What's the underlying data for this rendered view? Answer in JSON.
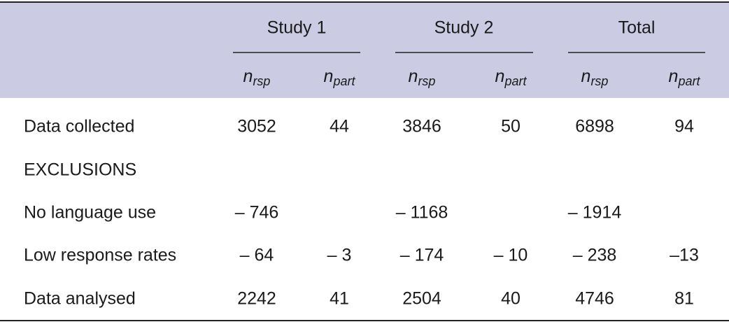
{
  "table": {
    "groups": [
      "Study 1",
      "Study 2",
      "Total"
    ],
    "subheaders": [
      {
        "base": "n",
        "sub": "rsp"
      },
      {
        "base": "n",
        "sub": "part"
      },
      {
        "base": "n",
        "sub": "rsp"
      },
      {
        "base": "n",
        "sub": "part"
      },
      {
        "base": "n",
        "sub": "rsp"
      },
      {
        "base": "n",
        "sub": "part"
      }
    ],
    "rows": [
      {
        "label": "Data collected",
        "cells": [
          3052,
          44,
          3846,
          50,
          6898,
          94
        ]
      },
      {
        "label": "EXCLUSIONS",
        "cells": []
      },
      {
        "label": "No language use",
        "cells": [
          "– 746",
          null,
          "– 1168",
          null,
          "– 1914",
          null
        ]
      },
      {
        "label": "Low response rates",
        "cells": [
          "– 64",
          "– 3",
          "– 174",
          "– 10",
          "– 238",
          "–13"
        ]
      },
      {
        "label": "Data analysed",
        "cells": [
          2242,
          41,
          2504,
          40,
          4746,
          81
        ]
      }
    ]
  }
}
